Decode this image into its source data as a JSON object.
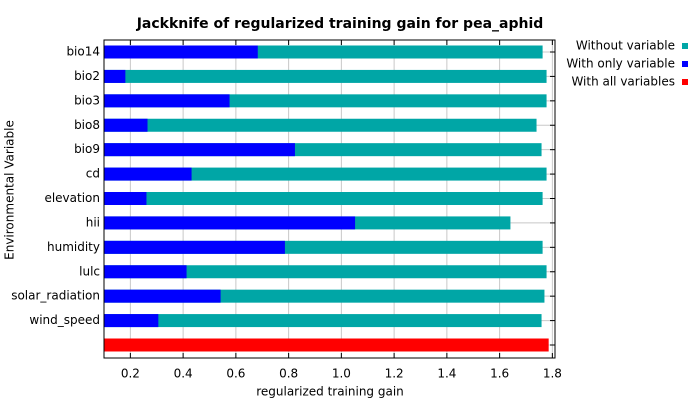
{
  "chart_data": {
    "type": "bar",
    "orientation": "horizontal",
    "title": "Jackknife of regularized training gain for pea_aphid",
    "x_label": "regularized training gain",
    "y_label": "Environmental Variable",
    "categories": [
      "bio14",
      "bio2",
      "bio3",
      "bio8",
      "bio9",
      "cd",
      "elevation",
      "hii",
      "humidity",
      "lulc",
      "solar_radiation",
      "wind_speed",
      null
    ],
    "series": [
      {
        "name": "Without variable",
        "color": "#00a6a6",
        "values": [
          1.763,
          1.778,
          1.778,
          1.74,
          1.759,
          1.778,
          1.763,
          1.641,
          1.763,
          1.778,
          1.77,
          1.759,
          null
        ]
      },
      {
        "name": "With only variable",
        "color": "#0000ff",
        "values": [
          0.683,
          0.181,
          0.576,
          0.265,
          0.824,
          0.432,
          0.261,
          1.052,
          0.786,
          0.413,
          0.542,
          0.306,
          null
        ]
      },
      {
        "name": "With all variables",
        "color": "#ff0000",
        "values": [
          null,
          null,
          null,
          null,
          null,
          null,
          null,
          null,
          null,
          null,
          null,
          null,
          1.786
        ]
      }
    ],
    "xlim": [
      0.1,
      1.81
    ],
    "xticks": [
      0.2,
      0.4,
      0.6,
      0.8,
      {
        "value": 1,
        "label": "1.0"
      },
      1.2,
      1.4,
      1.6,
      1.8
    ],
    "grid": true,
    "legend": "top-right"
  }
}
